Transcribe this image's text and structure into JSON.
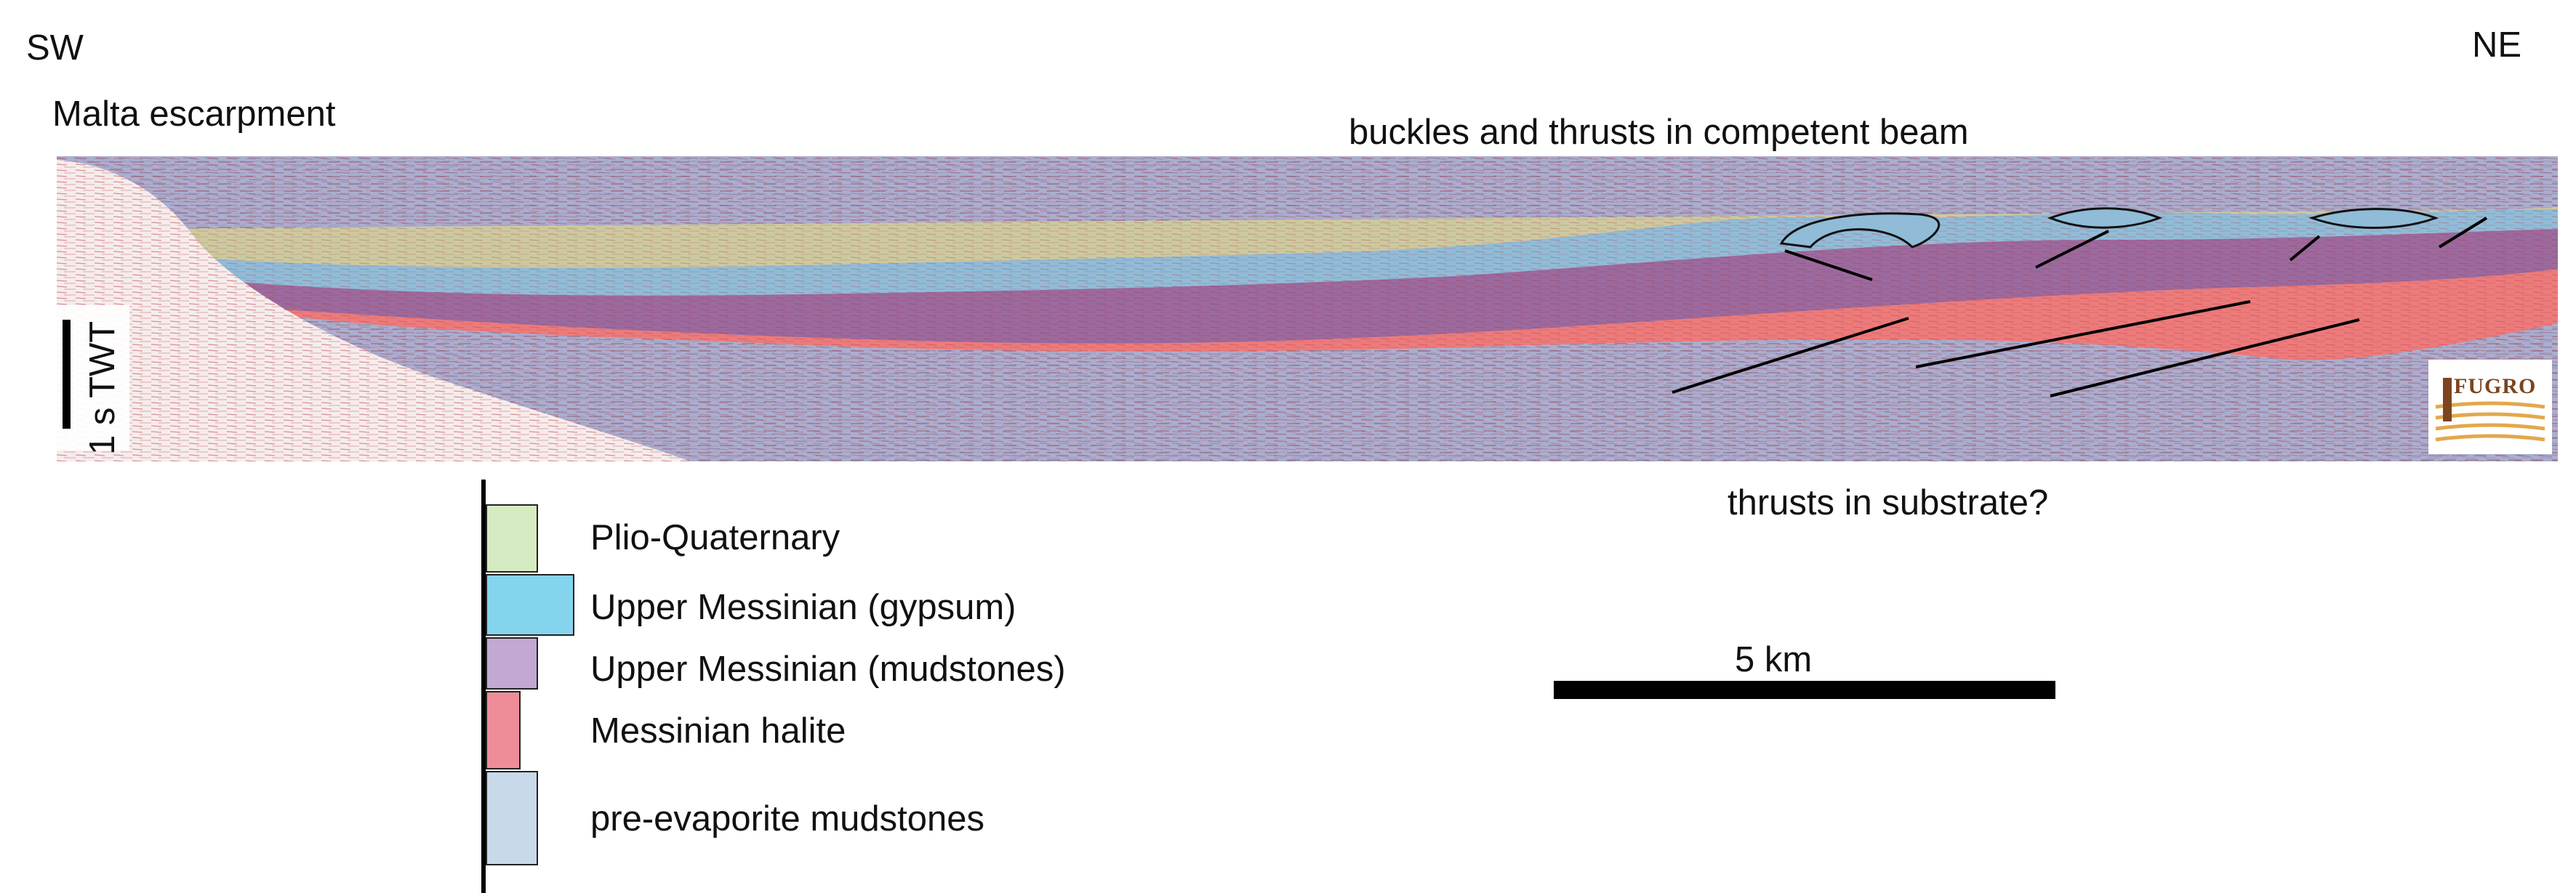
{
  "orientation": {
    "left": "SW",
    "right": "NE"
  },
  "annotations": {
    "escarpment": "Malta escarpment",
    "beam": "buckles and thrusts in competent beam",
    "substrate": "thrusts in substrate?",
    "vertical_scale": "1 s TWT",
    "horizontal_scale": "5 km"
  },
  "logo": {
    "text": "FUGRO"
  },
  "legend": [
    {
      "label": "Plio-Quaternary",
      "color": "#d6ebc2",
      "relative_width": 0.55
    },
    {
      "label": "Upper Messinian (gypsum)",
      "color": "#85d4ee",
      "relative_width": 1.0
    },
    {
      "label": "Upper Messinian (mudstones)",
      "color": "#c2a9d3",
      "relative_width": 0.55
    },
    {
      "label": "Messinian halite",
      "color": "#ee8c98",
      "relative_width": 0.4
    },
    {
      "label": "pre-evaporite mudstones",
      "color": "#c8d9ea",
      "relative_width": 0.55
    }
  ],
  "colors": {
    "plio_quaternary_section": "#ccc9a0",
    "gypsum_section": "#90bcd8",
    "mudstones_section": "#9b6a9e",
    "halite_section": "#ec7b7b",
    "pre_evaporite_section": "#aaaed0",
    "seismic_red": "#b0202a",
    "fault_line": "#000000"
  }
}
